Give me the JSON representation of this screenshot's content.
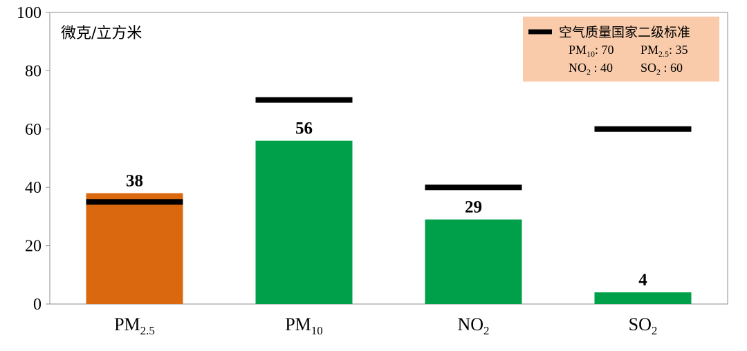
{
  "chart_data": {
    "type": "bar",
    "unit": "微克/立方米",
    "ylim": [
      0,
      100
    ],
    "yticks": [
      "0",
      "20",
      "40",
      "60",
      "80",
      "100"
    ],
    "categories": [
      {
        "base": "PM",
        "sub": "2.5"
      },
      {
        "base": "PM",
        "sub": "10"
      },
      {
        "base": "NO",
        "sub": "2"
      },
      {
        "base": "SO",
        "sub": "2"
      }
    ],
    "values": [
      38,
      56,
      29,
      4
    ],
    "value_labels": [
      "38",
      "56",
      "29",
      "4"
    ],
    "standards": [
      35,
      70,
      40,
      60
    ],
    "bar_colors": [
      "#D9680E",
      "#00A04A",
      "#00A04A",
      "#00A04A"
    ],
    "grid": false,
    "legend": {
      "position": "top-right",
      "title": "空气质量国家二级标准",
      "background": "#F9CBAA",
      "items": [
        {
          "base": "PM",
          "sub": "10",
          "sep": ": ",
          "value": "70"
        },
        {
          "base": "PM",
          "sub": "2.5",
          "sep": ": ",
          "value": "35"
        },
        {
          "base": "NO",
          "sub": "2",
          "sep": " : ",
          "value": "40"
        },
        {
          "base": "SO",
          "sub": "2",
          "sep": " : ",
          "value": "60"
        }
      ]
    }
  }
}
